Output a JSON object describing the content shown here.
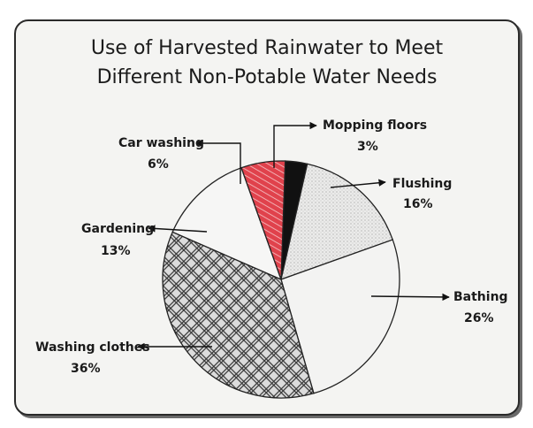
{
  "title_lines": [
    "Use of Harvested Rainwater to Meet",
    "Different Non-Potable Water Needs"
  ],
  "chart_data": {
    "type": "pie",
    "title": "Use of Harvested Rainwater to Meet Different Non-Potable Water Needs",
    "slices": [
      {
        "label": "Mopping floors",
        "value": 3,
        "display": "3%",
        "color": "#111111"
      },
      {
        "label": "Flushing",
        "value": 16,
        "display": "16%",
        "color": "#e6e6e4"
      },
      {
        "label": "Bathing",
        "value": 26,
        "display": "26%",
        "color": "#f2f2f2"
      },
      {
        "label": "Washing clothes",
        "value": 36,
        "display": "36%",
        "color": "#d8d8d8"
      },
      {
        "label": "Gardening",
        "value": 13,
        "display": "13%",
        "color": "#f6f6f6"
      },
      {
        "label": "Car washing",
        "value": 6,
        "display": "6%",
        "color": "#e23a44"
      }
    ],
    "legend": "none"
  }
}
